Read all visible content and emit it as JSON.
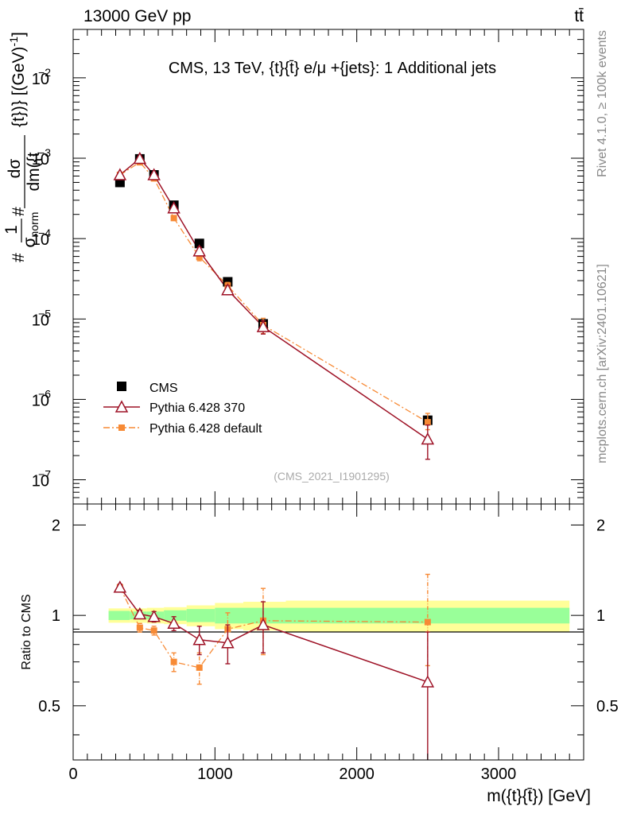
{
  "header": {
    "left": "13000 GeV pp",
    "right": "tt̄"
  },
  "side_labels": {
    "rivet": "Rivet 4.1.0, ≥ 100k events",
    "mcplots": "mcplots.cern.ch [arXiv:2401.10621]"
  },
  "colors": {
    "cms": "#000000",
    "pythia370": "#9e1226",
    "pythia_default": "#f78a35",
    "band_inner": "#99ff99",
    "band_outer": "#ffff99"
  },
  "chart_data": [
    {
      "type": "scatter",
      "panel": "main",
      "title": "CMS, 13 TeV, {t}{t̄} e/μ +{jets}: 1 Additional jets",
      "ylabel_num": "d",
      "ylabel": "1/σ_norm dσ/dm({t}{t̄}) [(GeV)^-1]",
      "yscale": "log",
      "ylim": [
        5e-08,
        0.04
      ],
      "xlim": [
        0,
        3600
      ],
      "y_ticks": [
        {
          "base": "10",
          "exp": "−2",
          "value": 0.01
        },
        {
          "base": "10",
          "exp": "−3",
          "value": 0.001
        },
        {
          "base": "10",
          "exp": "−4",
          "value": 0.0001
        },
        {
          "base": "10",
          "exp": "−5",
          "value": 1e-05
        },
        {
          "base": "10",
          "exp": "−6",
          "value": 1e-06
        },
        {
          "base": "10",
          "exp": "−7",
          "value": 1e-07
        }
      ],
      "legend_position": "bottom-left",
      "analysis_tag": "(CMS_2021_I1901295)",
      "x": [
        330,
        470,
        570,
        710,
        890,
        1090,
        1340,
        2500
      ],
      "series": [
        {
          "name": "CMS",
          "style": "square",
          "values": [
            0.0005,
            0.00098,
            0.00062,
            0.00026,
            8.7e-05,
            2.9e-05,
            8.7e-06,
            5.5e-07
          ],
          "err_low": [
            5.5e-05,
            6e-05,
            4e-05,
            1.5e-05,
            5e-06,
            1.5e-06,
            7e-07,
            5e-08
          ],
          "err_high": [
            5.5e-05,
            6e-05,
            4e-05,
            1.5e-05,
            5e-06,
            1.5e-06,
            7e-07,
            5e-08
          ]
        },
        {
          "name": "Pythia 6.428 370",
          "style": "triangle-solid",
          "values": [
            0.00062,
            0.00099,
            0.00062,
            0.00024,
            7e-05,
            2.3e-05,
            8e-06,
            3.2e-07
          ],
          "err_low": [
            2e-05,
            4e-05,
            3e-05,
            1.5e-05,
            8e-06,
            3e-06,
            1.5e-06,
            1.4e-07
          ],
          "err_high": [
            2e-05,
            4e-05,
            3e-05,
            1.5e-05,
            8e-06,
            3e-06,
            1.5e-06,
            1.6e-07
          ]
        },
        {
          "name": "Pythia 6.428 default",
          "style": "smallsquare-dashdot",
          "values": [
            0.00062,
            0.00089,
            0.00056,
            0.00018,
            5.9e-05,
            2.6e-05,
            8.4e-06,
            5.2e-07
          ],
          "err_low": [
            2e-05,
            3e-05,
            2e-05,
            1e-05,
            6e-06,
            2.5e-06,
            1.8e-06,
            1e-07
          ],
          "err_high": [
            2e-05,
            3e-05,
            2e-05,
            1e-05,
            6e-06,
            2.5e-06,
            1.8e-06,
            1.5e-07
          ]
        }
      ]
    },
    {
      "type": "line",
      "panel": "ratio",
      "ylabel": "Ratio to CMS",
      "xlabel": "m({t}{t̄}) [GeV]",
      "xlim": [
        0,
        3600
      ],
      "ylim": [
        0.33,
        2.35
      ],
      "x_ticks": [
        0,
        1000,
        2000,
        3000
      ],
      "y_ticks": [
        0.5,
        1,
        2
      ],
      "band_bins": [
        250,
        400,
        520,
        640,
        800,
        1000,
        1200,
        1500,
        3500
      ],
      "band_inner": [
        0.035,
        0.03,
        0.03,
        0.04,
        0.05,
        0.06,
        0.06,
        0.06
      ],
      "band_outer": [
        0.055,
        0.055,
        0.06,
        0.065,
        0.08,
        0.1,
        0.11,
        0.12
      ],
      "x": [
        330,
        470,
        570,
        710,
        890,
        1090,
        1340,
        2500
      ],
      "series": [
        {
          "name": "Pythia 6.428 370",
          "values": [
            1.24,
            1.01,
            0.99,
            0.94,
            0.83,
            0.81,
            0.93,
            0.6
          ],
          "err_low": [
            0.03,
            0.03,
            0.04,
            0.05,
            0.09,
            0.12,
            0.18,
            0.27
          ],
          "err_high": [
            0.03,
            0.03,
            0.04,
            0.05,
            0.09,
            0.12,
            0.18,
            0.28
          ]
        },
        {
          "name": "Pythia 6.428 default",
          "values": [
            1.24,
            0.91,
            0.89,
            0.7,
            0.67,
            0.9,
            0.96,
            0.95
          ],
          "err_low": [
            0.03,
            0.03,
            0.03,
            0.05,
            0.08,
            0.12,
            0.22,
            0.27
          ],
          "err_high": [
            0.03,
            0.03,
            0.03,
            0.05,
            0.08,
            0.12,
            0.27,
            0.42
          ]
        }
      ]
    }
  ]
}
